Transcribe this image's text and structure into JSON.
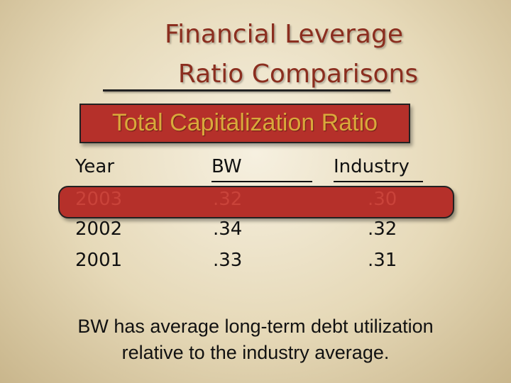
{
  "title_line1": "Financial Leverage",
  "title_line2": "Ratio Comparisons",
  "subtitle": "Total Capitalization Ratio",
  "table": {
    "headers": [
      "Year",
      "BW",
      "Industry"
    ],
    "rows": [
      {
        "year": "2003",
        "bw": ".32",
        "industry": ".30",
        "highlighted": true
      },
      {
        "year": "2002",
        "bw": ".34",
        "industry": ".32",
        "highlighted": false
      },
      {
        "year": "2001",
        "bw": ".33",
        "industry": ".31",
        "highlighted": false
      }
    ]
  },
  "note_line1": "BW has average long-term debt utilization",
  "note_line2": "relative to the industry average.",
  "colors": {
    "accent_red": "#b5302a",
    "title_color": "#8b2e1f",
    "subtitle_text": "#d9a93b"
  }
}
